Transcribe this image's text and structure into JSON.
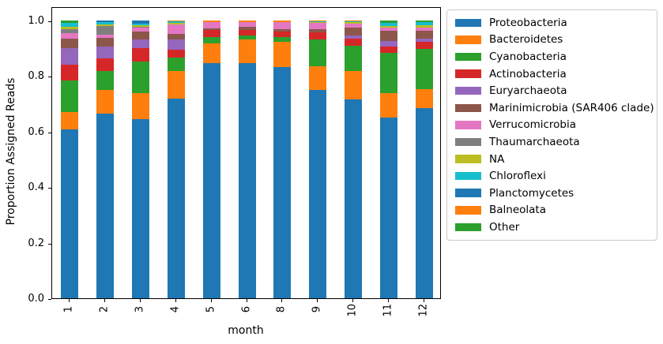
{
  "figure": {
    "background": "#ffffff",
    "text_color": "#000000",
    "spine_color": "#000000",
    "legend_border_color": "#cccccc"
  },
  "chart_data": {
    "type": "bar",
    "stacked": true,
    "title": "",
    "xlabel": "month",
    "ylabel": "Proportion Assigned Reads",
    "categories": [
      "1",
      "2",
      "3",
      "4",
      "5",
      "6",
      "8",
      "9",
      "10",
      "11",
      "12"
    ],
    "x_tick_rotation": 90,
    "ylim": [
      0,
      1.05
    ],
    "yticks": [
      0.0,
      0.2,
      0.4,
      0.6,
      0.8,
      1.0
    ],
    "grid": false,
    "legend_position": "outside upper right",
    "series": [
      {
        "name": "Proteobacteria",
        "color": "#1f77b4",
        "values": [
          0.607,
          0.665,
          0.645,
          0.717,
          0.845,
          0.845,
          0.831,
          0.75,
          0.715,
          0.65,
          0.685
        ]
      },
      {
        "name": "Bacteroidetes",
        "color": "#ff7f0e",
        "values": [
          0.062,
          0.085,
          0.094,
          0.099,
          0.071,
          0.085,
          0.091,
          0.083,
          0.103,
          0.087,
          0.068
        ]
      },
      {
        "name": "Cyanobacteria",
        "color": "#2ca02c",
        "values": [
          0.113,
          0.066,
          0.113,
          0.051,
          0.023,
          0.016,
          0.017,
          0.098,
          0.09,
          0.145,
          0.143
        ]
      },
      {
        "name": "Actinobacteria",
        "color": "#d62728",
        "values": [
          0.058,
          0.047,
          0.048,
          0.028,
          0.026,
          0.02,
          0.021,
          0.025,
          0.025,
          0.024,
          0.026
        ]
      },
      {
        "name": "Euryarchaeota",
        "color": "#9467bd",
        "values": [
          0.06,
          0.043,
          0.031,
          0.037,
          0.0,
          0.0,
          0.0,
          0.0,
          0.011,
          0.02,
          0.011
        ]
      },
      {
        "name": "Marinimicrobia (SAR406 clade)",
        "color": "#8c564b",
        "values": [
          0.035,
          0.031,
          0.028,
          0.02,
          0.006,
          0.011,
          0.009,
          0.013,
          0.03,
          0.036,
          0.03
        ]
      },
      {
        "name": "Verrucomicrobia",
        "color": "#e377c2",
        "values": [
          0.018,
          0.011,
          0.014,
          0.033,
          0.023,
          0.017,
          0.023,
          0.022,
          0.015,
          0.011,
          0.011
        ]
      },
      {
        "name": "Thaumarchaeota",
        "color": "#7f7f7f",
        "values": [
          0.015,
          0.031,
          0.003,
          0.0,
          0.0,
          0.0,
          0.0,
          0.0,
          0.0,
          0.0,
          0.0
        ]
      },
      {
        "name": "NA",
        "color": "#bcbd22",
        "values": [
          0.008,
          0.006,
          0.006,
          0.006,
          0.0,
          0.0,
          0.0,
          0.002,
          0.004,
          0.006,
          0.009
        ]
      },
      {
        "name": "Chloroflexi",
        "color": "#17becf",
        "values": [
          0.014,
          0.008,
          0.006,
          0.004,
          0.0,
          0.0,
          0.0,
          0.002,
          0.003,
          0.011,
          0.009
        ]
      },
      {
        "name": "Planctomycetes",
        "color": "#1f77b4",
        "values": [
          0.0,
          0.007,
          0.012,
          0.0,
          0.0,
          0.0,
          0.0,
          0.0,
          0.0,
          0.0,
          0.0
        ]
      },
      {
        "name": "Balneolata",
        "color": "#ff7f0e",
        "values": [
          0.0,
          0.0,
          0.0,
          0.005,
          0.006,
          0.006,
          0.008,
          0.005,
          0.004,
          0.0,
          0.0
        ]
      },
      {
        "name": "Other",
        "color": "#2ca02c",
        "values": [
          0.01,
          0.0,
          0.0,
          0.0,
          0.0,
          0.0,
          0.0,
          0.0,
          0.0,
          0.01,
          0.008
        ]
      }
    ]
  }
}
